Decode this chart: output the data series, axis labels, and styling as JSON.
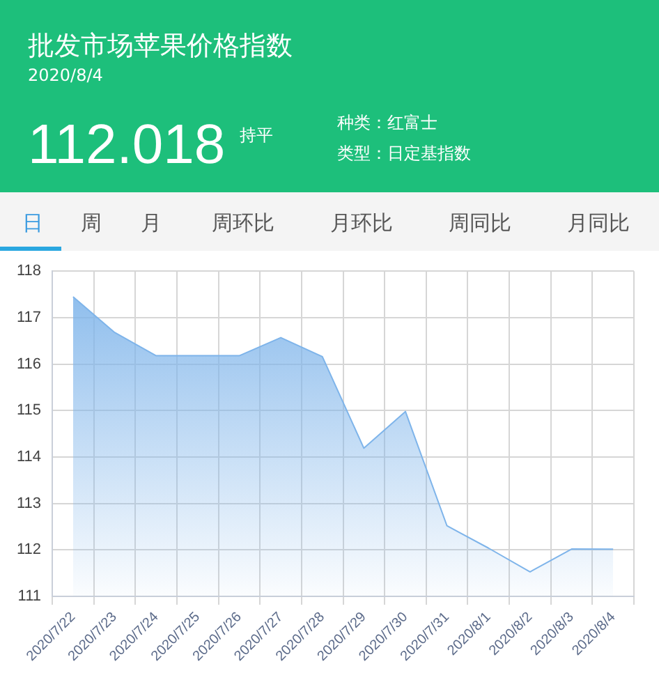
{
  "chart_data": {
    "type": "area",
    "title": "批发市场苹果价格指数",
    "subtitle": "2020/8/4",
    "annotations": [
      "112.018",
      "持平",
      "种类：红富士",
      "类型：日定基指数",
      "日",
      "周",
      "月",
      "周环比",
      "月环比",
      "周同比",
      "月同比"
    ],
    "categories": [
      "2020/7/22",
      "2020/7/23",
      "2020/7/24",
      "2020/7/25",
      "2020/7/26",
      "2020/7/27",
      "2020/7/28",
      "2020/7/29",
      "2020/7/30",
      "2020/7/31",
      "2020/8/1",
      "2020/8/2",
      "2020/8/3",
      "2020/8/4"
    ],
    "series": [
      {
        "color": "#7eb4ea",
        "values": [
          117.45,
          116.68,
          116.18,
          116.18,
          116.18,
          116.57,
          116.16,
          114.19,
          114.98,
          112.52,
          112.04,
          111.53,
          112.02,
          112.018
        ]
      }
    ],
    "ylim": [
      111,
      118
    ],
    "yticks": [
      111,
      112,
      113,
      114,
      115,
      116,
      117,
      118
    ],
    "grid": true,
    "marker": "none",
    "legend": false
  }
}
